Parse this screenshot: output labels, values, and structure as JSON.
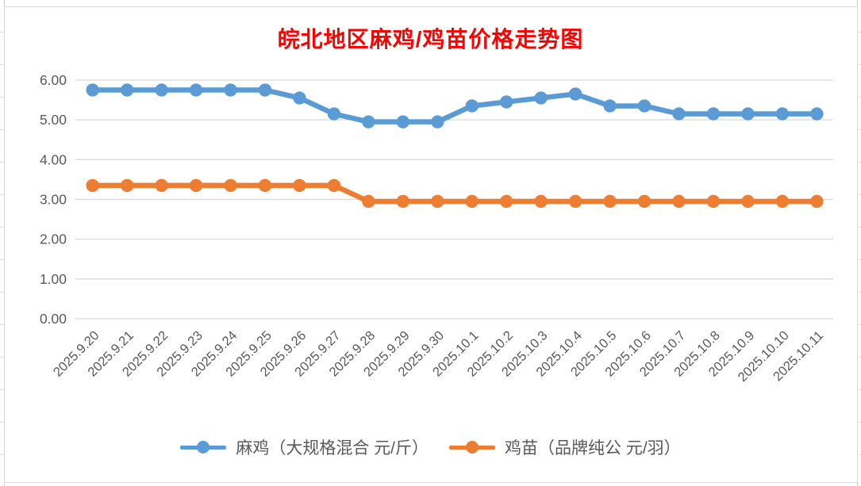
{
  "title": "皖北地区麻鸡/鸡苗价格走势图",
  "colors": {
    "title": "#ff0000",
    "series1": "#5B9BD5",
    "series2": "#ED7D31",
    "axis_text": "#595959",
    "gridline": "#d9d9d9",
    "chart_border": "#d9d9d9"
  },
  "chart_data": {
    "type": "line",
    "title": "皖北地区麻鸡/鸡苗价格走势图",
    "categories": [
      "2025.9.20",
      "2025.9.21",
      "2025.9.22",
      "2025.9.23",
      "2025.9.24",
      "2025.9.25",
      "2025.9.26",
      "2025.9.27",
      "2025.9.28",
      "2025.9.29",
      "2025.9.30",
      "2025.10.1",
      "2025.10.2",
      "2025.10.3",
      "2025.10.4",
      "2025.10.5",
      "2025.10.6",
      "2025.10.7",
      "2025.10.8",
      "2025.10.9",
      "2025.10.10",
      "2025.10.11"
    ],
    "series": [
      {
        "name": "麻鸡（大规格混合 元/斤）",
        "color": "#5B9BD5",
        "values": [
          5.75,
          5.75,
          5.75,
          5.75,
          5.75,
          5.75,
          5.55,
          5.15,
          4.95,
          4.95,
          4.95,
          5.35,
          5.45,
          5.55,
          5.65,
          5.35,
          5.35,
          5.15,
          5.15,
          5.15,
          5.15,
          5.15
        ]
      },
      {
        "name": "鸡苗（品牌纯公 元/羽）",
        "color": "#ED7D31",
        "values": [
          3.35,
          3.35,
          3.35,
          3.35,
          3.35,
          3.35,
          3.35,
          3.35,
          2.95,
          2.95,
          2.95,
          2.95,
          2.95,
          2.95,
          2.95,
          2.95,
          2.95,
          2.95,
          2.95,
          2.95,
          2.95,
          2.95
        ]
      }
    ],
    "ylim": [
      0,
      6
    ],
    "ytick_step": 1,
    "ytick_labels": [
      "0.00",
      "1.00",
      "2.00",
      "3.00",
      "4.00",
      "5.00",
      "6.00"
    ],
    "grid": true,
    "legend_position": "bottom"
  }
}
